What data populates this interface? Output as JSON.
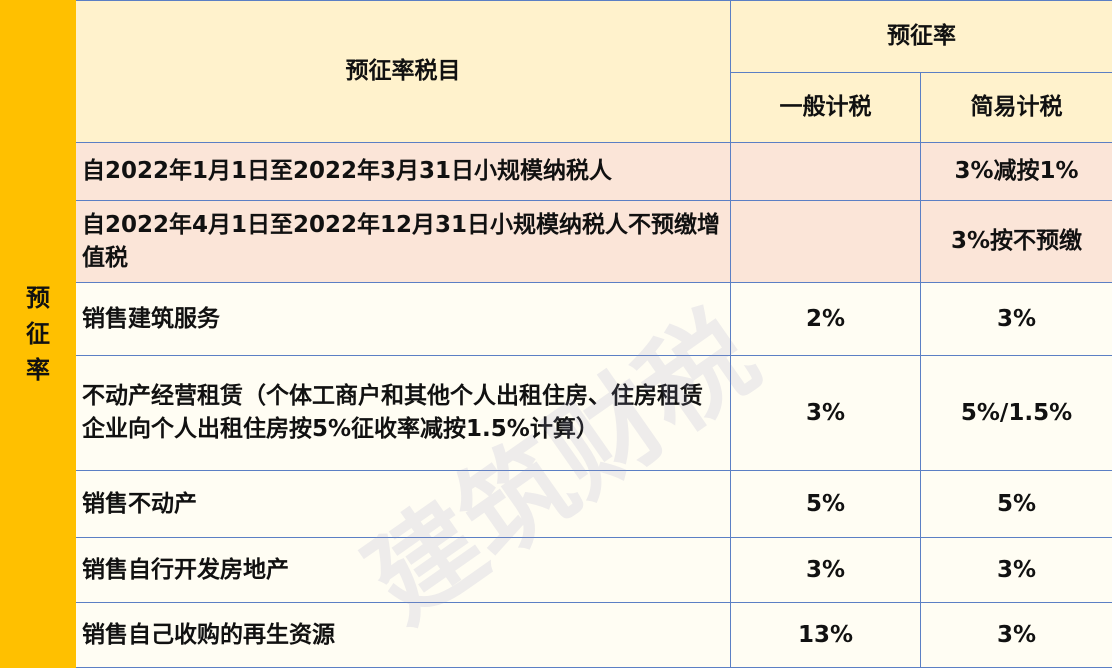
{
  "side_label": "预征率",
  "header": {
    "item": "预征率税目",
    "rate_group": "预征率",
    "general": "一般计税",
    "simple": "简易计税"
  },
  "rows": [
    {
      "item": "自2022年1月1日至2022年3月31日小规模纳税人",
      "general": "",
      "simple": "3%减按1%",
      "highlight": true
    },
    {
      "item": "自2022年4月1日至2022年12月31日小规模纳税人不预缴增值税",
      "general": "",
      "simple": "3%按不预缴",
      "highlight": true
    },
    {
      "item": "销售建筑服务",
      "general": "2%",
      "simple": "3%"
    },
    {
      "item": "不动产经营租赁（个体工商户和其他个人出租住房、住房租赁企业向个人出租住房按5%征收率减按1.5%计算）",
      "general": "3%",
      "simple": "5%/1.5%"
    },
    {
      "item": "销售不动产",
      "general": "5%",
      "simple": "5%"
    },
    {
      "item": "销售自行开发房地产",
      "general": "3%",
      "simple": "3%"
    },
    {
      "item": "销售自己收购的再生资源",
      "general": "13%",
      "simple": "3%"
    }
  ],
  "watermark": "建筑财税",
  "colors": {
    "side": "#ffc000",
    "header": "#fff2cc",
    "highlight": "#fbe5d8",
    "border": "#5b7fc4"
  }
}
